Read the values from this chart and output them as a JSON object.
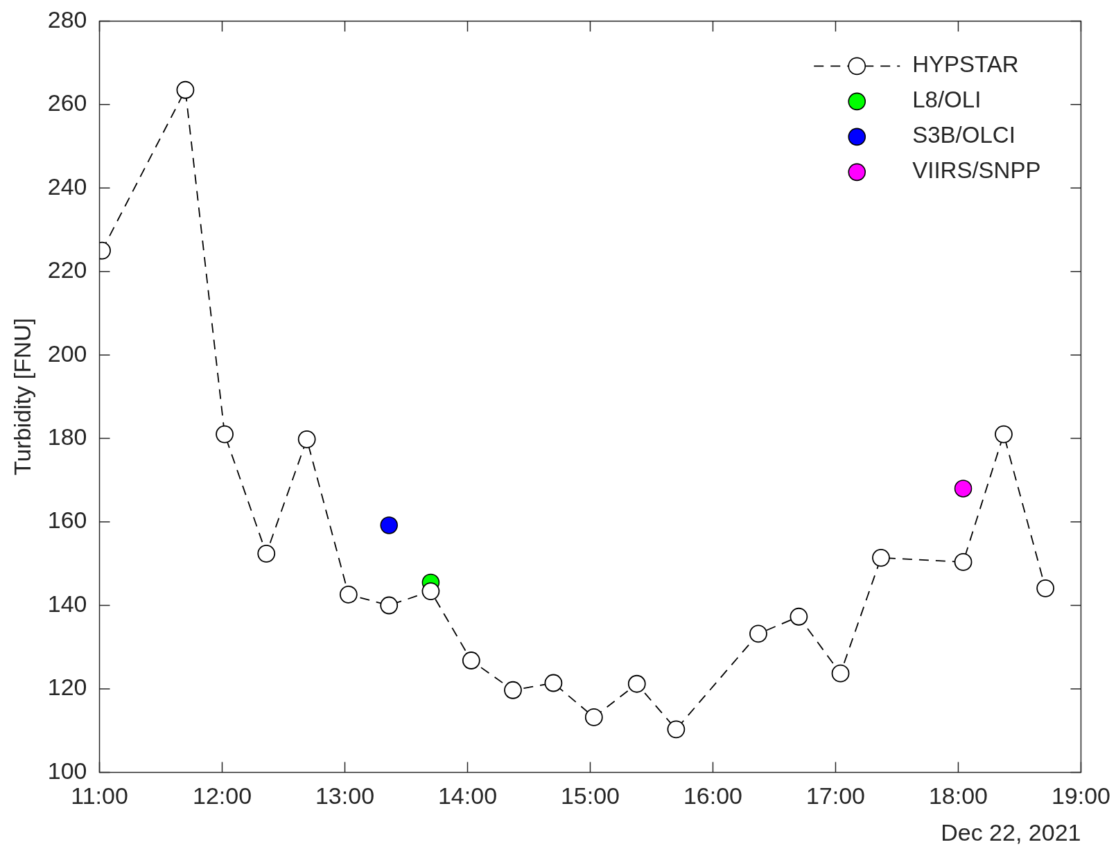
{
  "chart_data": {
    "type": "line",
    "xlabel": "Dec 22, 2021",
    "ylabel": "Turbidity [FNU]",
    "xlim": [
      11,
      19
    ],
    "xticks": [
      {
        "value": 11,
        "label": "11:00"
      },
      {
        "value": 12,
        "label": "12:00"
      },
      {
        "value": 13,
        "label": "13:00"
      },
      {
        "value": 14,
        "label": "14:00"
      },
      {
        "value": 15,
        "label": "15:00"
      },
      {
        "value": 16,
        "label": "16:00"
      },
      {
        "value": 17,
        "label": "17:00"
      },
      {
        "value": 18,
        "label": "18:00"
      },
      {
        "value": 19,
        "label": "19:00"
      }
    ],
    "ylim": [
      100,
      280
    ],
    "yticks": [
      100,
      120,
      140,
      160,
      180,
      200,
      220,
      240,
      260,
      280
    ],
    "grid": false,
    "legend": "top right",
    "series": [
      {
        "name": "HYPSTAR",
        "color": "#000000",
        "marker": "circle",
        "line_style": "dashed",
        "x": [
          11.02,
          11.7,
          12.02,
          12.36,
          12.69,
          13.03,
          13.36,
          13.7,
          14.03,
          14.37,
          14.7,
          15.03,
          15.38,
          15.7,
          16.37,
          16.7,
          17.04,
          17.37,
          18.04,
          18.37,
          18.71
        ],
        "values": [
          225,
          263.5,
          181,
          152.4,
          179.8,
          142.6,
          140,
          143.4,
          126.8,
          119.7,
          121.4,
          113.2,
          121.2,
          110.3,
          133.2,
          137.3,
          123.7,
          151.4,
          150.4,
          181,
          144.1
        ]
      },
      {
        "name": "L8/OLI",
        "type": "scatter",
        "color": "#00ff00",
        "marker": "circle",
        "x": [
          13.7
        ],
        "values": [
          145.5
        ]
      },
      {
        "name": "S3B/OLCI",
        "type": "scatter",
        "color": "#0000ff",
        "marker": "circle",
        "x": [
          13.36
        ],
        "values": [
          159.2
        ]
      },
      {
        "name": "VIIRS/SNPP",
        "type": "scatter",
        "color": "#ff00ff",
        "marker": "circle",
        "x": [
          18.04
        ],
        "values": [
          168
        ]
      }
    ]
  }
}
